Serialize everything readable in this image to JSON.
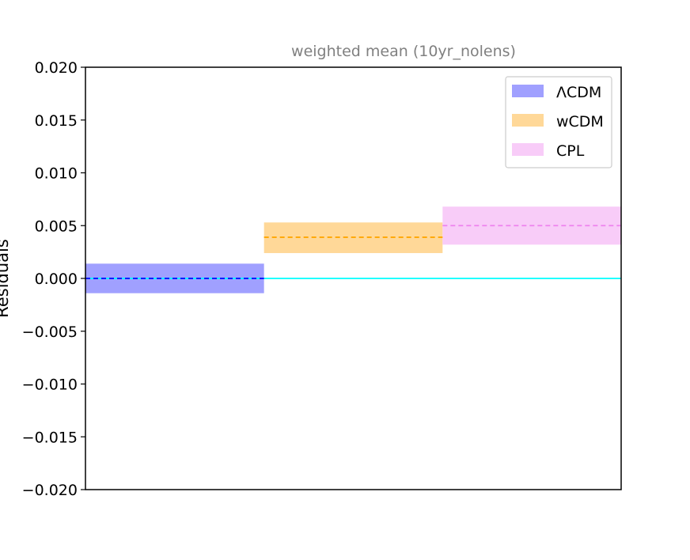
{
  "chart_data": {
    "type": "bar",
    "title": "weighted mean (10yr_nolens)",
    "xlabel": "",
    "ylabel": "Residuals",
    "ylim": [
      -0.02,
      0.02
    ],
    "yticks": [
      0.02,
      0.015,
      0.01,
      0.005,
      0.0,
      -0.005,
      -0.01,
      -0.015,
      -0.02
    ],
    "ytick_labels": [
      "0.020",
      "0.015",
      "0.010",
      "0.005",
      "0.000",
      "−0.005",
      "−0.010",
      "−0.015",
      "−0.020"
    ],
    "grid": false,
    "legend_position": "top-right",
    "reference_line": {
      "y": 0.0,
      "color": "#00ffff"
    },
    "series": [
      {
        "name": "ΛCDM",
        "mean": 0.0,
        "low": -0.0014,
        "high": 0.0014,
        "fill_color": "#a0a0ff",
        "line_color": "#0000ff"
      },
      {
        "name": "wCDM",
        "mean": 0.0039,
        "low": 0.0024,
        "high": 0.0053,
        "fill_color": "#ffd898",
        "line_color": "#ffa500"
      },
      {
        "name": "CPL",
        "mean": 0.005,
        "low": 0.0032,
        "high": 0.0068,
        "fill_color": "#f8ccf8",
        "line_color": "#ee82ee"
      }
    ]
  }
}
